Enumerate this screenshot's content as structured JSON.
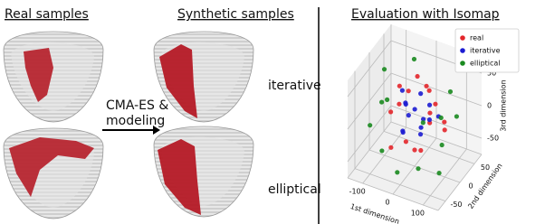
{
  "left": {
    "real_title": "Real samples",
    "synthetic_title": "Synthetic samples",
    "method_line1": "CMA-ES &",
    "method_line2": "modeling",
    "label_top": "iterative",
    "label_bottom": "elliptical"
  },
  "chart_data": {
    "type": "scatter3d",
    "title": "Evaluation with Isomap",
    "xlabel": "1st dimension",
    "ylabel": "2nd dimension",
    "zlabel": "3rd dimension",
    "xlim": [
      -150,
      150
    ],
    "ylim": [
      -75,
      75
    ],
    "zlim": [
      -75,
      75
    ],
    "xticks": [
      -100,
      0,
      100
    ],
    "yticks": [
      -50,
      0,
      50
    ],
    "zticks": [
      -50,
      0,
      50
    ],
    "legend": "upper right",
    "series": [
      {
        "name": "real",
        "color": "#e3262b",
        "x": [
          -60,
          -30,
          0,
          20,
          50,
          -80,
          10,
          70,
          -40,
          30,
          -10,
          90,
          -50,
          40,
          0,
          60
        ],
        "y": [
          -20,
          10,
          -30,
          20,
          0,
          30,
          40,
          -20,
          -40,
          -10,
          20,
          10,
          0,
          30,
          0,
          40
        ],
        "z": [
          10,
          30,
          -20,
          40,
          0,
          -10,
          20,
          30,
          -30,
          -40,
          50,
          -10,
          40,
          10,
          -50,
          -20
        ]
      },
      {
        "name": "iterative",
        "color": "#1c1cd2",
        "x": [
          -20,
          10,
          30,
          -40,
          0,
          50,
          -10,
          20,
          -30,
          40,
          0,
          60,
          -60,
          10
        ],
        "y": [
          0,
          -10,
          20,
          10,
          30,
          -30,
          -20,
          0,
          -10,
          10,
          -40,
          20,
          20,
          10
        ],
        "z": [
          0,
          20,
          -10,
          10,
          -20,
          10,
          30,
          40,
          -20,
          20,
          0,
          0,
          20,
          -30
        ]
      },
      {
        "name": "elliptical",
        "color": "#1a8a1f",
        "x": [
          -110,
          -90,
          -120,
          100,
          120,
          -70,
          80,
          0,
          -20,
          110,
          -100,
          60,
          30,
          -40
        ],
        "y": [
          10,
          -20,
          30,
          -10,
          20,
          -40,
          40,
          -60,
          50,
          -30,
          -50,
          -50,
          60,
          40
        ],
        "z": [
          50,
          20,
          -10,
          -20,
          10,
          -40,
          30,
          -50,
          -40,
          -50,
          0,
          -40,
          -30,
          60
        ]
      }
    ]
  }
}
